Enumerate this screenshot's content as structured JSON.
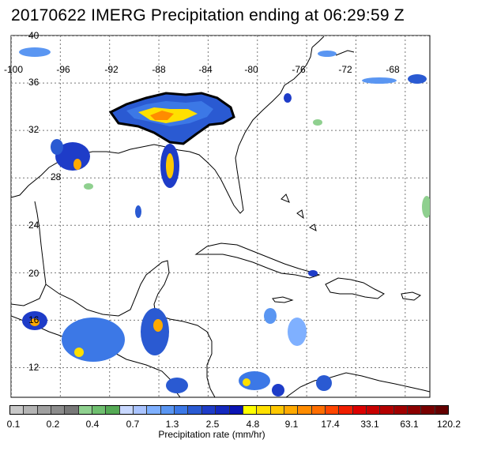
{
  "title": "20170622 IMERG Precipitation ending at 06:29:59 Z",
  "map": {
    "lon_ticks": [
      "-100",
      "-96",
      "-92",
      "-88",
      "-84",
      "-80",
      "-76",
      "-72",
      "-68"
    ],
    "lat_ticks": [
      "40",
      "36",
      "32",
      "28",
      "24",
      "20",
      "16",
      "12"
    ],
    "lon_range": [
      -100,
      -66
    ],
    "lat_range": [
      9.5,
      40
    ],
    "grid": "dotted"
  },
  "colorbar": {
    "title": "Precipitation rate (mm/hr)",
    "labels": [
      "0.1",
      "0.2",
      "0.4",
      "0.7",
      "1.3",
      "2.5",
      "4.8",
      "9.1",
      "17.4",
      "33.1",
      "63.1",
      "120.2"
    ],
    "colors": [
      "#c8c8c8",
      "#b4b4b4",
      "#a0a0a0",
      "#8c8c8c",
      "#787878",
      "#8fd08f",
      "#6fbf6f",
      "#55aa55",
      "#c8d8ff",
      "#aac4ff",
      "#7fb0ff",
      "#5a96f2",
      "#3c78e6",
      "#2a5ad2",
      "#1e3cc8",
      "#1428be",
      "#0a14b4",
      "#ffff00",
      "#ffe000",
      "#ffc800",
      "#ffaa00",
      "#ff8c00",
      "#ff6e00",
      "#ff4600",
      "#f01e00",
      "#dc0000",
      "#c80000",
      "#b40000",
      "#a00000",
      "#8c0000",
      "#780000",
      "#640000"
    ]
  }
}
